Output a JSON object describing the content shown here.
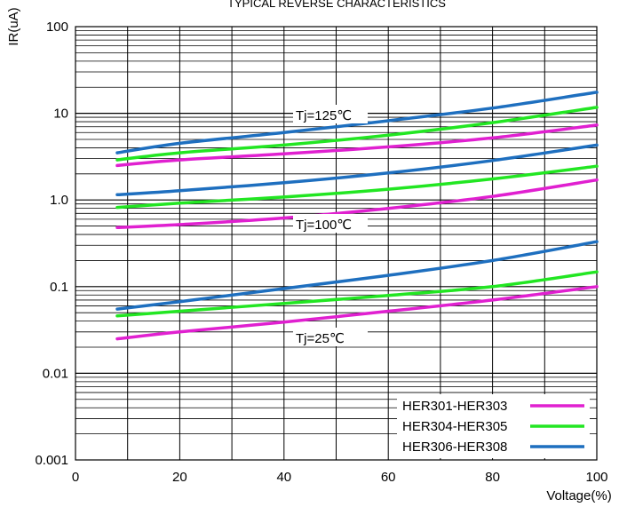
{
  "chart_data": {
    "type": "line",
    "title": "TYPICAL REVERSE CHARACTERISTICS",
    "xlabel": "Voltage(%)",
    "ylabel": "IR(uA)",
    "x_scale": "linear",
    "y_scale": "log",
    "xlim": [
      0,
      100
    ],
    "ylim": [
      0.001,
      100
    ],
    "x_ticks": [
      "0",
      "20",
      "40",
      "60",
      "80",
      "100"
    ],
    "y_ticks": [
      "0.001",
      "0.01",
      "0.1",
      "1.0",
      "10",
      "100"
    ],
    "grid": true,
    "legend_position": "bottom-right",
    "colors": {
      "HER301-HER303": "#e020d0",
      "HER304-HER305": "#22e622",
      "HER306-HER308": "#1e6fbf"
    },
    "annotations": [
      "Tj=125℃",
      "Tj=100℃",
      "Tj=25℃"
    ],
    "series": [
      {
        "name": "HER301-HER303",
        "group": "Tj=125℃",
        "x": [
          8,
          20,
          40,
          60,
          80,
          100
        ],
        "y": [
          2.5,
          2.9,
          3.4,
          4.1,
          5.2,
          7.3
        ]
      },
      {
        "name": "HER304-HER305",
        "group": "Tj=125℃",
        "x": [
          8,
          20,
          40,
          60,
          80,
          100
        ],
        "y": [
          2.9,
          3.5,
          4.3,
          5.6,
          7.8,
          11.7
        ]
      },
      {
        "name": "HER306-HER308",
        "group": "Tj=125℃",
        "x": [
          8,
          20,
          40,
          60,
          80,
          100
        ],
        "y": [
          3.5,
          4.5,
          6.0,
          8.2,
          11.5,
          17.5
        ]
      },
      {
        "name": "HER301-HER303",
        "group": "Tj=100℃",
        "x": [
          8,
          20,
          40,
          60,
          80,
          100
        ],
        "y": [
          0.48,
          0.52,
          0.62,
          0.8,
          1.1,
          1.7
        ]
      },
      {
        "name": "HER304-HER305",
        "group": "Tj=100℃",
        "x": [
          8,
          20,
          40,
          60,
          80,
          100
        ],
        "y": [
          0.82,
          0.92,
          1.08,
          1.33,
          1.75,
          2.45
        ]
      },
      {
        "name": "HER306-HER308",
        "group": "Tj=100℃",
        "x": [
          8,
          20,
          40,
          60,
          80,
          100
        ],
        "y": [
          1.15,
          1.28,
          1.58,
          2.05,
          2.85,
          4.3
        ]
      },
      {
        "name": "HER301-HER303",
        "group": "Tj=25℃",
        "x": [
          8,
          20,
          40,
          60,
          80,
          100
        ],
        "y": [
          0.025,
          0.03,
          0.039,
          0.052,
          0.07,
          0.1
        ]
      },
      {
        "name": "HER304-HER305",
        "group": "Tj=25℃",
        "x": [
          8,
          20,
          40,
          60,
          80,
          100
        ],
        "y": [
          0.046,
          0.052,
          0.064,
          0.079,
          0.1,
          0.148
        ]
      },
      {
        "name": "HER306-HER308",
        "group": "Tj=25℃",
        "x": [
          8,
          20,
          40,
          60,
          80,
          100
        ],
        "y": [
          0.055,
          0.067,
          0.095,
          0.135,
          0.2,
          0.33
        ]
      }
    ]
  }
}
